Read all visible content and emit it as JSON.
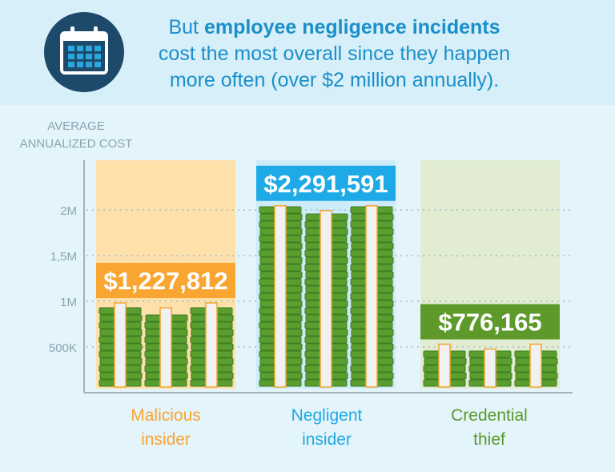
{
  "header": {
    "line1_pre": "But ",
    "line1_bold": "employee negligence incidents",
    "line2": "cost the most overall since they happen",
    "line3": "more often (over $2 million annually).",
    "icon": "calendar-icon"
  },
  "chart_data": {
    "type": "bar",
    "ylabel": "AVERAGE ANNUALIZED COST",
    "ylabel_lines": [
      "AVERAGE",
      "ANNUALIZED COST"
    ],
    "yticks": [
      {
        "value": 500000,
        "label": "500K"
      },
      {
        "value": 1000000,
        "label": "1M"
      },
      {
        "value": 1500000,
        "label": "1,5M"
      },
      {
        "value": 2000000,
        "label": "2M"
      }
    ],
    "ylim": [
      0,
      2550000
    ],
    "grid": true,
    "categories": [
      "Malicious insider",
      "Negligent insider",
      "Credential thief"
    ],
    "category_lines": [
      [
        "Malicious",
        "insider"
      ],
      [
        "Negligent",
        "insider"
      ],
      [
        "Credential",
        "thief"
      ]
    ],
    "values": [
      1227812,
      2291591,
      776165
    ],
    "value_labels": [
      "$1,227,812",
      "$2,291,591",
      "$776,165"
    ],
    "colors": [
      "#f9a531",
      "#1eaae7",
      "#5d9a2b"
    ],
    "bg_colors": [
      "#fde0aa",
      "#cdebf9",
      "#e1ecd2"
    ]
  }
}
